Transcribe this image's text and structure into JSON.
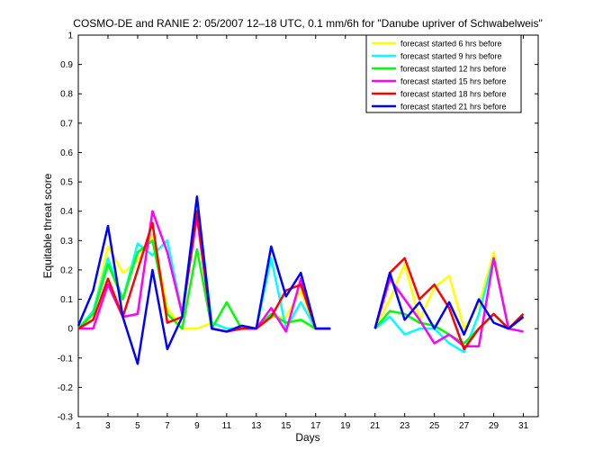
{
  "chart_data": {
    "type": "line",
    "title": "COSMO-DE and RANIE 2: 05/2007 12–18 UTC, 0.1 mm/6h for \"Danube upriver of Schwabelweis\"",
    "xlabel": "Days",
    "ylabel": "Equitable threat score",
    "xlim": [
      1,
      32
    ],
    "ylim": [
      -0.3,
      1
    ],
    "xticks": [
      1,
      3,
      5,
      7,
      9,
      11,
      13,
      15,
      17,
      19,
      21,
      23,
      25,
      27,
      29,
      31
    ],
    "yticks": [
      -0.3,
      -0.2,
      -0.1,
      0,
      0.1,
      0.2,
      0.3,
      0.4,
      0.5,
      0.6,
      0.7,
      0.8,
      0.9,
      1
    ],
    "ytick_labels": [
      "-0.3",
      "-0.2",
      "-0.1",
      "0",
      "0.1",
      "0.2",
      "0.3",
      "0.4",
      "0.5",
      "0.6",
      "0.7",
      "0.8",
      "0.9",
      "1"
    ],
    "legend_position": "top-right",
    "grid": false,
    "x": [
      1,
      2,
      3,
      4,
      5,
      6,
      7,
      8,
      9,
      10,
      11,
      12,
      13,
      14,
      15,
      16,
      17,
      18,
      19,
      20,
      21,
      22,
      23,
      24,
      25,
      26,
      27,
      28,
      29,
      30,
      31
    ],
    "series": [
      {
        "name": "forecast started 6 hrs before",
        "color": "#ffff00",
        "values": [
          0.0,
          0.05,
          0.28,
          0.19,
          0.23,
          0.32,
          0.07,
          0.0,
          0.0,
          0.02,
          0.0,
          0.0,
          0.0,
          0.04,
          0.04,
          0.13,
          0.0,
          0.0,
          null,
          null,
          0.0,
          0.1,
          0.22,
          0.03,
          0.14,
          0.18,
          0.0,
          0.08,
          0.26,
          0.0,
          0.05
        ]
      },
      {
        "name": "forecast started 9 hrs before",
        "color": "#00ffff",
        "values": [
          0.0,
          0.06,
          0.24,
          0.1,
          0.29,
          0.25,
          0.3,
          0.05,
          0.44,
          0.02,
          0.0,
          0.0,
          0.0,
          0.24,
          0.0,
          0.09,
          0.0,
          0.0,
          null,
          null,
          0.0,
          0.04,
          -0.02,
          0.0,
          0.0,
          -0.05,
          -0.08,
          0.05,
          0.24,
          0.0,
          0.05
        ]
      },
      {
        "name": "forecast started 12 hrs before",
        "color": "#00ff00",
        "values": [
          0.0,
          0.05,
          0.22,
          0.1,
          0.26,
          0.3,
          0.05,
          0.0,
          0.27,
          0.0,
          0.09,
          0.0,
          0.0,
          0.05,
          0.02,
          0.03,
          0.0,
          0.0,
          null,
          null,
          0.0,
          0.06,
          0.05,
          0.02,
          0.01,
          -0.02,
          -0.05,
          0.0,
          0.05,
          0.0,
          0.05
        ]
      },
      {
        "name": "forecast started 15 hrs before",
        "color": "#ff00ff",
        "values": [
          0.0,
          0.0,
          0.15,
          0.04,
          0.05,
          0.4,
          0.26,
          0.05,
          0.38,
          0.0,
          -0.01,
          0.0,
          0.0,
          0.07,
          -0.01,
          0.17,
          0.0,
          0.0,
          null,
          null,
          0.0,
          0.17,
          0.1,
          0.03,
          -0.05,
          -0.02,
          -0.06,
          -0.06,
          0.24,
          0.0,
          -0.01
        ]
      },
      {
        "name": "forecast started 18 hrs before",
        "color": "#ff0000",
        "values": [
          0.0,
          0.03,
          0.17,
          0.04,
          0.2,
          0.36,
          0.02,
          0.04,
          0.4,
          0.0,
          -0.01,
          0.0,
          0.0,
          0.04,
          0.13,
          0.15,
          0.0,
          0.0,
          null,
          null,
          0.0,
          0.19,
          0.24,
          0.1,
          0.15,
          0.07,
          -0.07,
          0.0,
          0.05,
          0.0,
          0.05
        ]
      },
      {
        "name": "forecast started 21 hrs before",
        "color": "#0000ff",
        "values": [
          0.01,
          0.13,
          0.35,
          0.04,
          -0.12,
          0.2,
          -0.07,
          0.04,
          0.45,
          0.0,
          -0.01,
          0.01,
          0.0,
          0.28,
          0.11,
          0.19,
          0.0,
          0.0,
          null,
          null,
          0.0,
          0.19,
          0.03,
          0.09,
          0.0,
          0.09,
          -0.02,
          0.1,
          0.02,
          0.0,
          0.04
        ]
      }
    ]
  }
}
